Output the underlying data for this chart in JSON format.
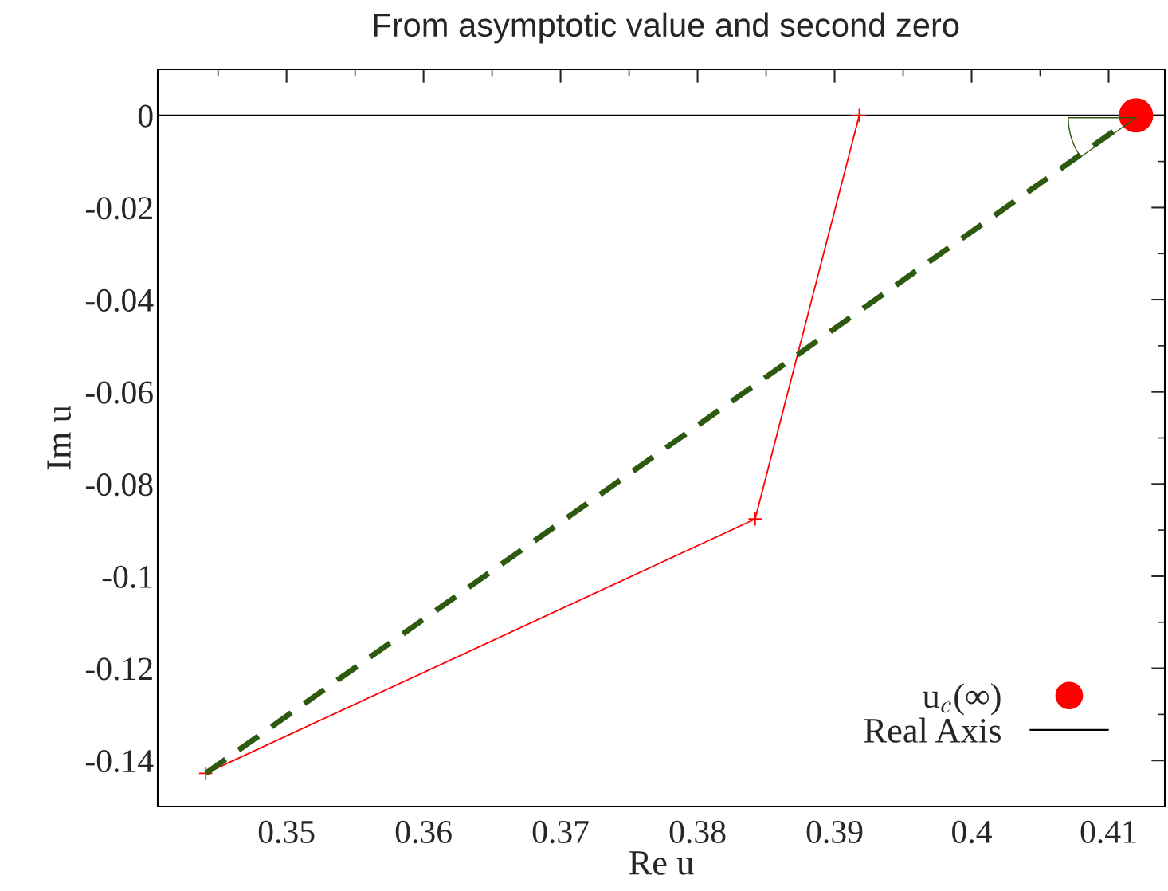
{
  "chart_data": {
    "type": "line",
    "title": "From asymptotic value and second zero",
    "xlabel": "Re u",
    "ylabel": "Im u",
    "xlim": [
      0.3406,
      0.4141
    ],
    "ylim": [
      -0.15,
      0.01
    ],
    "xticks": [
      0.35,
      0.36,
      0.37,
      0.38,
      0.39,
      {
        "value": 0.4,
        "label": "0.4"
      },
      0.41
    ],
    "yticks": [
      -0.14,
      -0.12,
      {
        "value": -0.1,
        "label": "-0.1"
      },
      -0.08,
      -0.06,
      -0.04,
      -0.02,
      0
    ],
    "series": [
      {
        "color": "#ff0000",
        "x": [
          0.3441,
          0.3842,
          0.3918
        ],
        "values": [
          -0.1428,
          -0.0876,
          0
        ],
        "marker": "cross",
        "line_style": "solid"
      },
      {
        "color": "#2d5a0e",
        "x": [
          0.3441,
          0.412
        ],
        "values": [
          -0.1428,
          0
        ],
        "marker": "none",
        "line_style": "dashed"
      },
      {
        "type": "scatter",
        "name": "u$_{c}$(∞)",
        "color": "#ff0000",
        "x": [
          0.412
        ],
        "values": [
          0
        ],
        "marker": "circle"
      }
    ],
    "ref_lines": [
      {
        "axis": "y",
        "value": 0,
        "label": "Real Axis",
        "color": "#000000",
        "line_style": "solid"
      }
    ],
    "legend": "bottom right",
    "grid": false
  }
}
